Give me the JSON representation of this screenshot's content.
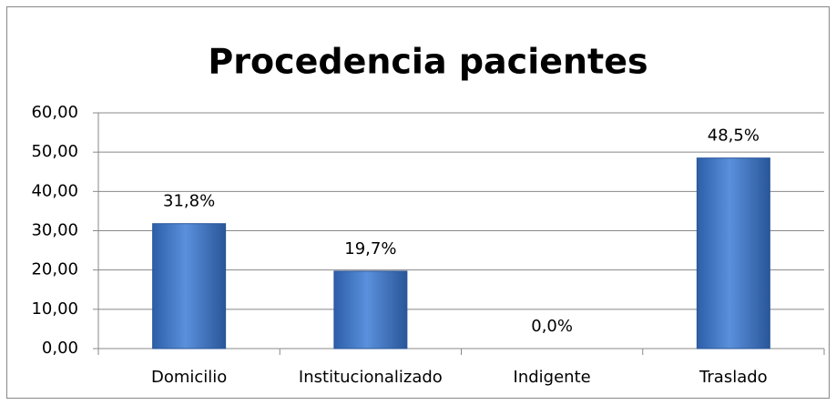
{
  "chart_data": {
    "type": "bar",
    "title": "Procedencia pacientes",
    "categories": [
      "Domicilio",
      "Institucionalizado",
      "Indigente",
      "Traslado"
    ],
    "values": [
      31.8,
      19.7,
      0,
      48.5
    ],
    "value_labels": [
      "31,8%",
      "19,7%",
      "0,0%",
      "48,5%"
    ],
    "color": "#3a6fbf",
    "ylim": [
      0,
      60
    ],
    "yticks": [
      {
        "value": 0,
        "label": "0,00"
      },
      {
        "value": 10,
        "label": "10,00"
      },
      {
        "value": 20,
        "label": "20,00"
      },
      {
        "value": 30,
        "label": "30,00"
      },
      {
        "value": 40,
        "label": "40,00"
      },
      {
        "value": 50,
        "label": "50,00"
      },
      {
        "value": 60,
        "label": "60,00"
      }
    ],
    "grid": true
  }
}
